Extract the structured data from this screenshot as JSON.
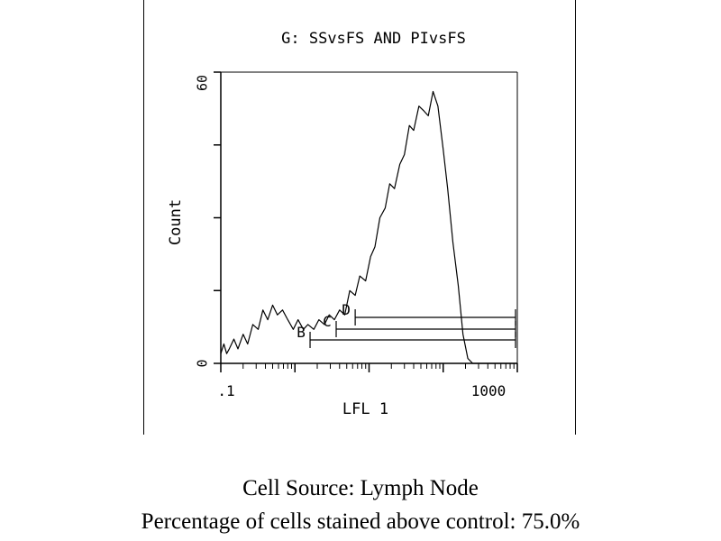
{
  "chart_data": {
    "type": "area",
    "title": "G: SSvsFS AND PIvsFS",
    "xlabel": "LFL 1",
    "ylabel": "Count",
    "x_scale": "log",
    "xlim": [
      0.1,
      1000
    ],
    "ylim": [
      0,
      60
    ],
    "x_tick_labels": [
      ".1",
      "1000"
    ],
    "y_tick_labels": [
      "0",
      "60"
    ],
    "grid": false,
    "series": [
      {
        "x": [
          0.1,
          0.11,
          0.12,
          0.13,
          0.15,
          0.17,
          0.2,
          0.23,
          0.27,
          0.32,
          0.37,
          0.43,
          0.5,
          0.58,
          0.68,
          0.8,
          0.95,
          1.1,
          1.3,
          1.5,
          1.8,
          2.1,
          2.5,
          2.9,
          3.4,
          4,
          4.7,
          5.5,
          6.5,
          7.5,
          9,
          10.5,
          12,
          14,
          16.5,
          19,
          22,
          26,
          30,
          35,
          40,
          47,
          55,
          63,
          73,
          85,
          100,
          115,
          135,
          160,
          185,
          215,
          250,
          300,
          350,
          450,
          600,
          1000
        ],
        "y": [
          2,
          4,
          2,
          3,
          5,
          3,
          6,
          4,
          8,
          7,
          11,
          9,
          12,
          10,
          11,
          9,
          7,
          9,
          7,
          8,
          7,
          9,
          8,
          10,
          9,
          11,
          10,
          15,
          14,
          18,
          17,
          22,
          24,
          30,
          32,
          37,
          36,
          41,
          43,
          49,
          48,
          53,
          52,
          51,
          56,
          53,
          44,
          36,
          25,
          16,
          6,
          1,
          0,
          0,
          0,
          0,
          0,
          0
        ]
      }
    ],
    "markers": [
      {
        "label": "B",
        "x_start": 1.6,
        "x_end": 1000
      },
      {
        "label": "C",
        "x_start": 3.6,
        "x_end": 1000
      },
      {
        "label": "D",
        "x_start": 6.5,
        "x_end": 1000
      }
    ]
  },
  "captions": {
    "cell_source": "Cell Source: Lymph Node",
    "percentage": "Percentage of cells stained above control: 75.0%"
  }
}
